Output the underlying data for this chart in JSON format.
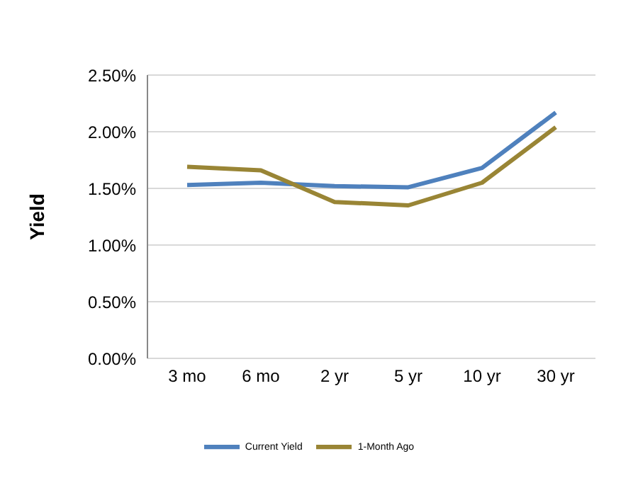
{
  "chart_data": {
    "type": "line",
    "ylabel": "Yield",
    "categories": [
      "3 mo",
      "6 mo",
      "2 yr",
      "5 yr",
      "10 yr",
      "30 yr"
    ],
    "series": [
      {
        "name": "Current Yield",
        "color": "#4f81bd",
        "values": [
          1.53,
          1.55,
          1.52,
          1.51,
          1.68,
          2.17
        ]
      },
      {
        "name": "1-Month Ago",
        "color": "#998535",
        "values": [
          1.69,
          1.66,
          1.38,
          1.35,
          1.55,
          2.04
        ]
      }
    ],
    "ylim": [
      0,
      2.5
    ],
    "yticks": [
      {
        "value": 0,
        "label": "0.00%"
      },
      {
        "value": 0.5,
        "label": "0.50%"
      },
      {
        "value": 1,
        "label": "1.00%"
      },
      {
        "value": 1.5,
        "label": "1.50%"
      },
      {
        "value": 2,
        "label": "2.00%"
      },
      {
        "value": 2.5,
        "label": "2.50%"
      }
    ],
    "grid": "y",
    "legend": "bottom",
    "marker": "none",
    "line_style": "solid"
  }
}
